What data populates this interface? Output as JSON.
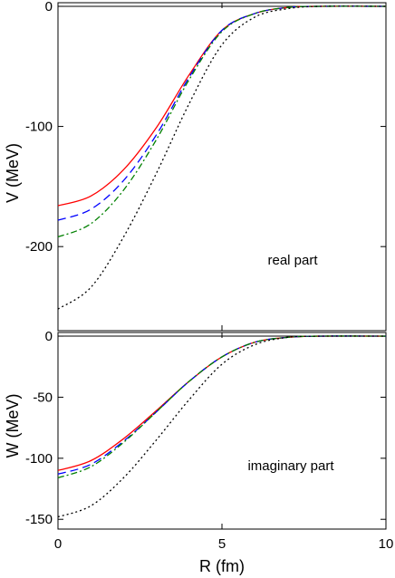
{
  "chart_data": [
    {
      "type": "line",
      "ylabel": "V (MeV)",
      "annotation": "real part",
      "xlim": [
        0,
        10
      ],
      "ylim": [
        -270,
        3
      ],
      "xticks": [
        0,
        5,
        10
      ],
      "yticks": [
        0,
        -100,
        -200
      ],
      "ytick_labels": [
        "0",
        "-100",
        "-200"
      ],
      "series": [
        {
          "color": "#ff0000",
          "dash": "solid",
          "x": [
            0,
            1,
            2,
            3,
            4,
            5,
            6,
            7,
            8,
            10
          ],
          "y": [
            -166,
            -158,
            -136,
            -101,
            -57,
            -20,
            -6,
            -1,
            0,
            0
          ]
        },
        {
          "color": "#0000ff",
          "dash": "long-dash",
          "x": [
            0,
            1,
            2,
            3,
            4,
            5,
            6,
            7,
            8,
            10
          ],
          "y": [
            -178,
            -169,
            -145,
            -107,
            -59,
            -20,
            -6,
            -1,
            0,
            0
          ]
        },
        {
          "color": "#008000",
          "dash": "dash-dot",
          "x": [
            0,
            1,
            2,
            3,
            4,
            5,
            6,
            7,
            8,
            10
          ],
          "y": [
            -192,
            -181,
            -153,
            -111,
            -61,
            -21,
            -6,
            -1,
            0,
            0
          ]
        },
        {
          "color": "#000000",
          "dash": "dotted",
          "x": [
            0,
            1,
            2,
            3,
            4,
            5,
            6,
            7,
            8,
            10
          ],
          "y": [
            -252,
            -234,
            -192,
            -139,
            -81,
            -32,
            -9,
            -2,
            0,
            0
          ]
        }
      ]
    },
    {
      "type": "line",
      "xlabel": "R (fm)",
      "ylabel": "W (MeV)",
      "annotation": "imaginary part",
      "xlim": [
        0,
        10
      ],
      "ylim": [
        -158,
        3
      ],
      "xticks": [
        0,
        5,
        10
      ],
      "xtick_labels": [
        "0",
        "5",
        "10"
      ],
      "yticks": [
        0,
        -50,
        -100,
        -150
      ],
      "ytick_labels": [
        "0",
        "-50",
        "-100",
        "-150"
      ],
      "series": [
        {
          "color": "#ff0000",
          "dash": "solid",
          "x": [
            0,
            1,
            2,
            3,
            4,
            5,
            6,
            7,
            8,
            10
          ],
          "y": [
            -110,
            -102,
            -84,
            -61,
            -37,
            -17,
            -5,
            -1,
            0,
            0
          ]
        },
        {
          "color": "#0000ff",
          "dash": "long-dash",
          "x": [
            0,
            1,
            2,
            3,
            4,
            5,
            6,
            7,
            8,
            10
          ],
          "y": [
            -113,
            -105,
            -86,
            -62,
            -37,
            -17,
            -5,
            -1,
            0,
            0
          ]
        },
        {
          "color": "#008000",
          "dash": "dash-dot",
          "x": [
            0,
            1,
            2,
            3,
            4,
            5,
            6,
            7,
            8,
            10
          ],
          "y": [
            -116,
            -107,
            -87,
            -62,
            -37,
            -17,
            -5,
            -1,
            0,
            0
          ]
        },
        {
          "color": "#000000",
          "dash": "dotted",
          "x": [
            0,
            1,
            2,
            3,
            4,
            5,
            6,
            7,
            8,
            10
          ],
          "y": [
            -148,
            -139,
            -116,
            -85,
            -52,
            -23,
            -7,
            -1,
            0,
            0
          ]
        }
      ]
    }
  ]
}
